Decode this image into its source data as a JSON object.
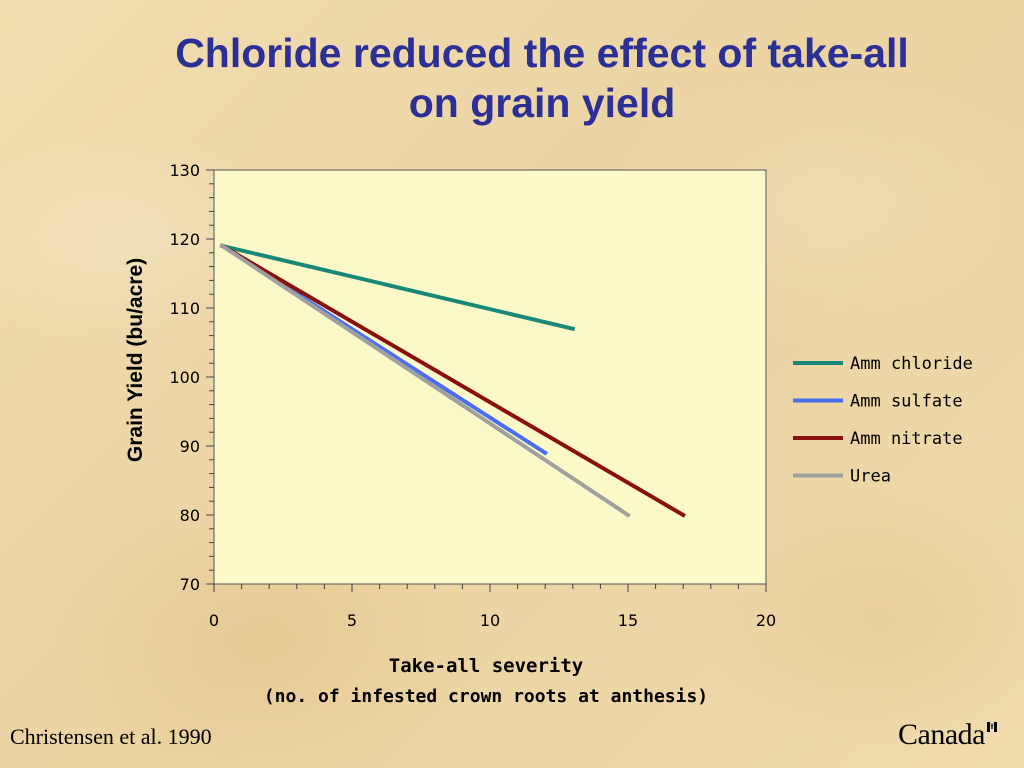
{
  "slide": {
    "title_line1": "Chloride reduced the effect of take-all",
    "title_line2": "on grain yield",
    "citation": "Christensen et al. 1990",
    "logo_text": "Canada"
  },
  "colors": {
    "title": "#2c2f96",
    "plot_bg": "#fcf9c8"
  },
  "chart_data": {
    "type": "line",
    "title": "",
    "xlabel_line1": "Take-all severity",
    "xlabel_line2": "(no. of infested crown roots at anthesis)",
    "ylabel": "Grain Yield (bu/acre)",
    "xlim": [
      0,
      20
    ],
    "ylim": [
      70,
      130
    ],
    "xticks": [
      0,
      5,
      10,
      15,
      20
    ],
    "yticks": [
      70,
      80,
      90,
      100,
      110,
      120,
      130
    ],
    "grid": false,
    "legend_position": "right",
    "series": [
      {
        "name": "Amm chloride",
        "color": "#188878",
        "x": [
          0.3,
          13
        ],
        "y": [
          119,
          107
        ]
      },
      {
        "name": "Amm sulfate",
        "color": "#4a6ff0",
        "x": [
          0.3,
          12
        ],
        "y": [
          119,
          89
        ]
      },
      {
        "name": "Amm nitrate",
        "color": "#8a1010",
        "x": [
          0.3,
          17
        ],
        "y": [
          119,
          80
        ]
      },
      {
        "name": "Urea",
        "color": "#a0a0a0",
        "x": [
          0.3,
          15
        ],
        "y": [
          119,
          80
        ]
      }
    ]
  }
}
